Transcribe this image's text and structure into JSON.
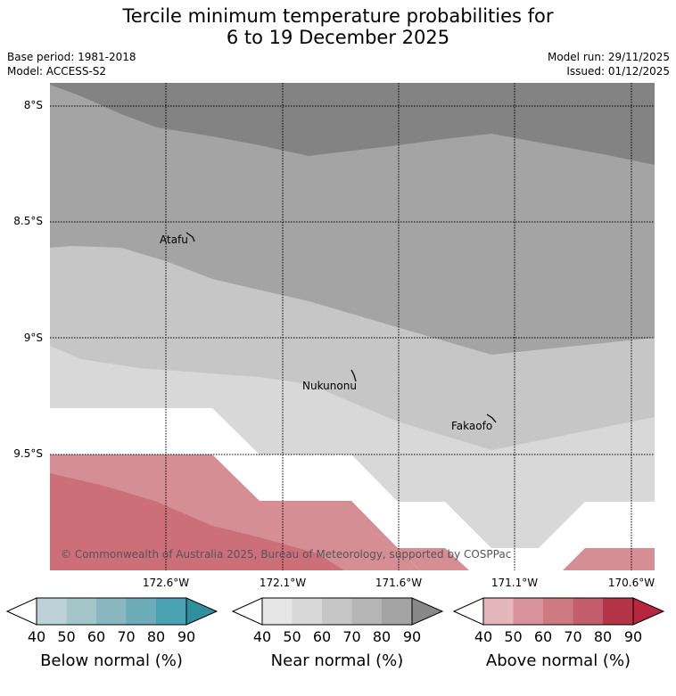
{
  "header": {
    "title_line1": "Tercile minimum temperature probabilities for",
    "title_line2": "6 to 19 December 2025",
    "base_period": "Base period: 1981-2018",
    "model": "Model: ACCESS-S2",
    "model_run": "Model run: 29/11/2025",
    "issued": "Issued: 01/12/2025"
  },
  "map": {
    "lat_labels": [
      "8°S",
      "8.5°S",
      "9°S",
      "9.5°S"
    ],
    "lon_labels": [
      "172.6°W",
      "172.1°W",
      "171.6°W",
      "171.1°W",
      "170.6°W"
    ],
    "places": [
      "Atafu",
      "Nukunonu",
      "Fakaofo"
    ],
    "copyright": "© Commonwealth of Australia 2025, Bureau of Meteorology, supported by COSPPac",
    "colors": {
      "near_50": "#d8d8d8",
      "near_60": "#c6c6c6",
      "near_70": "#a4a4a4",
      "near_80": "#838383",
      "above_50": "#d68e95",
      "above_60": "#cd6f79"
    }
  },
  "colorbars": [
    {
      "label": "Below normal (%)",
      "ticks": [
        "40",
        "50",
        "60",
        "70",
        "80",
        "90"
      ],
      "colors": [
        "#bcd2d8",
        "#a4c5ca",
        "#89b6c0",
        "#6cabb8",
        "#4aa1b1",
        "#2f8f9f"
      ]
    },
    {
      "label": "Near normal (%)",
      "ticks": [
        "40",
        "50",
        "60",
        "70",
        "80",
        "90"
      ],
      "colors": [
        "#e6e6e6",
        "#d7d7d7",
        "#c6c6c6",
        "#b6b6b6",
        "#a4a4a4",
        "#888888"
      ]
    },
    {
      "label": "Above normal (%)",
      "ticks": [
        "40",
        "50",
        "60",
        "70",
        "80",
        "90"
      ],
      "colors": [
        "#e5b7bc",
        "#d9949b",
        "#cd7a82",
        "#c45d6b",
        "#b53448",
        "#b8253f"
      ]
    }
  ]
}
